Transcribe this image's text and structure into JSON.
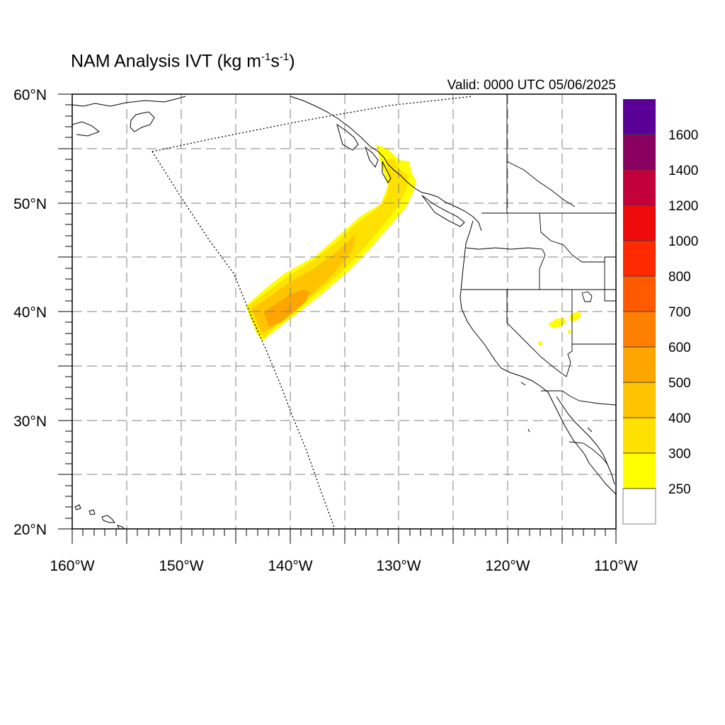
{
  "title_main": "NAM Analysis IVT (kg m",
  "title_sup1": "-1",
  "title_mid": "s",
  "title_sup2": "-1",
  "title_end": ")",
  "valid": "Valid: 0000 UTC 05/06/2025",
  "map": {
    "lon_range": [
      -160,
      -110
    ],
    "lat_range": [
      20,
      60
    ],
    "lat_labels": [
      "60°N",
      "50°N",
      "40°N",
      "30°N",
      "20°N"
    ],
    "lon_labels": [
      "160°W",
      "150°W",
      "140°W",
      "130°W",
      "120°W",
      "110°W"
    ],
    "gridlines": "dashed every 5 degrees"
  },
  "colorbar": {
    "labels": [
      "1600",
      "1400",
      "1200",
      "1000",
      "800",
      "700",
      "600",
      "500",
      "400",
      "300",
      "250"
    ],
    "colors": [
      "#ffffff",
      "#ffff00",
      "#ffe100",
      "#ffc400",
      "#ffa500",
      "#ff8000",
      "#ff5a00",
      "#ff2a00",
      "#ee0a0a",
      "#c4003a",
      "#8a0060",
      "#5a0099"
    ]
  },
  "features": {
    "atmospheric_river": "IVT 250-500 plume from about 37N 143W northeast to about 54N 130W",
    "inland_patches": "small 250-300 patches near 39-40N 114-117W"
  }
}
